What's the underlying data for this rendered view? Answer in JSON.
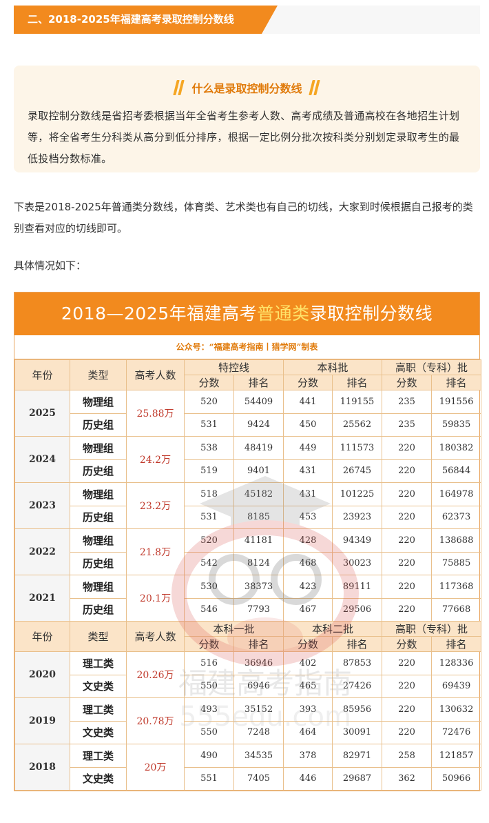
{
  "section_heading": "二、2018-2025年福建高考录取控制分数线",
  "definition": {
    "title": "什么是录取控制分数线",
    "text": "录取控制分数线是省招考委根据当年全省考生参考人数、高考成绩及普通高校在各地招生计划等，将全省考生分科类从高分到低分排序，根据一定比例分批次按科类分别划定录取考生的最低投档分数标准。"
  },
  "intro_text": "下表是2018-2025年普通类分数线，体育类、艺术类也有自己的切线，大家到时候根据自己报考的类别查看对应的切线即可。",
  "detail_text": "具体情况如下：",
  "table": {
    "title_pre": "2018—2025年福建高考",
    "title_hl": "普通类",
    "title_post": "录取控制分数线",
    "subtitle": "公众号：“福建高考指南丨猎学网”制表",
    "header_a": {
      "year": "年份",
      "type": "类型",
      "count": "高考人数",
      "groups": [
        "特控线",
        "本科批",
        "高职（专科）批"
      ],
      "sub": [
        "分数",
        "排名"
      ]
    },
    "rows_a": [
      {
        "year": "2025",
        "count": "25.88万",
        "rows": [
          {
            "type": "物理组",
            "v": [
              "520",
              "54409",
              "441",
              "119155",
              "235",
              "191556"
            ]
          },
          {
            "type": "历史组",
            "v": [
              "531",
              "9424",
              "450",
              "25562",
              "235",
              "59835"
            ]
          }
        ]
      },
      {
        "year": "2024",
        "count": "24.2万",
        "rows": [
          {
            "type": "物理组",
            "v": [
              "538",
              "48419",
              "449",
              "111573",
              "220",
              "180382"
            ]
          },
          {
            "type": "历史组",
            "v": [
              "519",
              "9401",
              "431",
              "26745",
              "220",
              "56844"
            ]
          }
        ]
      },
      {
        "year": "2023",
        "count": "23.2万",
        "rows": [
          {
            "type": "物理组",
            "v": [
              "518",
              "45182",
              "431",
              "101225",
              "220",
              "164978"
            ]
          },
          {
            "type": "历史组",
            "v": [
              "531",
              "8185",
              "453",
              "23923",
              "220",
              "62373"
            ]
          }
        ]
      },
      {
        "year": "2022",
        "count": "21.8万",
        "rows": [
          {
            "type": "物理组",
            "v": [
              "520",
              "41181",
              "428",
              "94349",
              "220",
              "138688"
            ]
          },
          {
            "type": "历史组",
            "v": [
              "542",
              "8124",
              "468",
              "30023",
              "220",
              "75885"
            ]
          }
        ]
      },
      {
        "year": "2021",
        "count": "20.1万",
        "rows": [
          {
            "type": "物理组",
            "v": [
              "530",
              "38373",
              "423",
              "89111",
              "220",
              "117368"
            ]
          },
          {
            "type": "历史组",
            "v": [
              "546",
              "7793",
              "467",
              "29506",
              "220",
              "77668"
            ]
          }
        ]
      }
    ],
    "header_b": {
      "year": "年份",
      "type": "类型",
      "count": "高考人数",
      "groups": [
        "本科一批",
        "本科二批",
        "高职（专科）批"
      ],
      "sub": [
        "分数",
        "排名"
      ]
    },
    "rows_b": [
      {
        "year": "2020",
        "count": "20.26万",
        "rows": [
          {
            "type": "理工类",
            "v": [
              "516",
              "36946",
              "402",
              "87853",
              "220",
              "128336"
            ]
          },
          {
            "type": "文史类",
            "v": [
              "550",
              "6946",
              "465",
              "27426",
              "220",
              "69439"
            ]
          }
        ]
      },
      {
        "year": "2019",
        "count": "20.78万",
        "rows": [
          {
            "type": "理工类",
            "v": [
              "493",
              "35152",
              "393",
              "85956",
              "220",
              "130632"
            ]
          },
          {
            "type": "文史类",
            "v": [
              "550",
              "7248",
              "464",
              "30091",
              "220",
              "72476"
            ]
          }
        ]
      },
      {
        "year": "2018",
        "count": "20万",
        "rows": [
          {
            "type": "理工类",
            "v": [
              "490",
              "34535",
              "378",
              "82971",
              "258",
              "121857"
            ]
          },
          {
            "type": "文史类",
            "v": [
              "551",
              "7405",
              "446",
              "29687",
              "362",
              "50966"
            ]
          }
        ]
      }
    ]
  },
  "watermark": {
    "line1": "福建高考指南",
    "line2": "555edu.com"
  },
  "colors": {
    "accent": "#f28a1e",
    "header_bg": "#fbe4c8",
    "count_red": "#c0392b",
    "title_highlight": "#ffe36a"
  }
}
